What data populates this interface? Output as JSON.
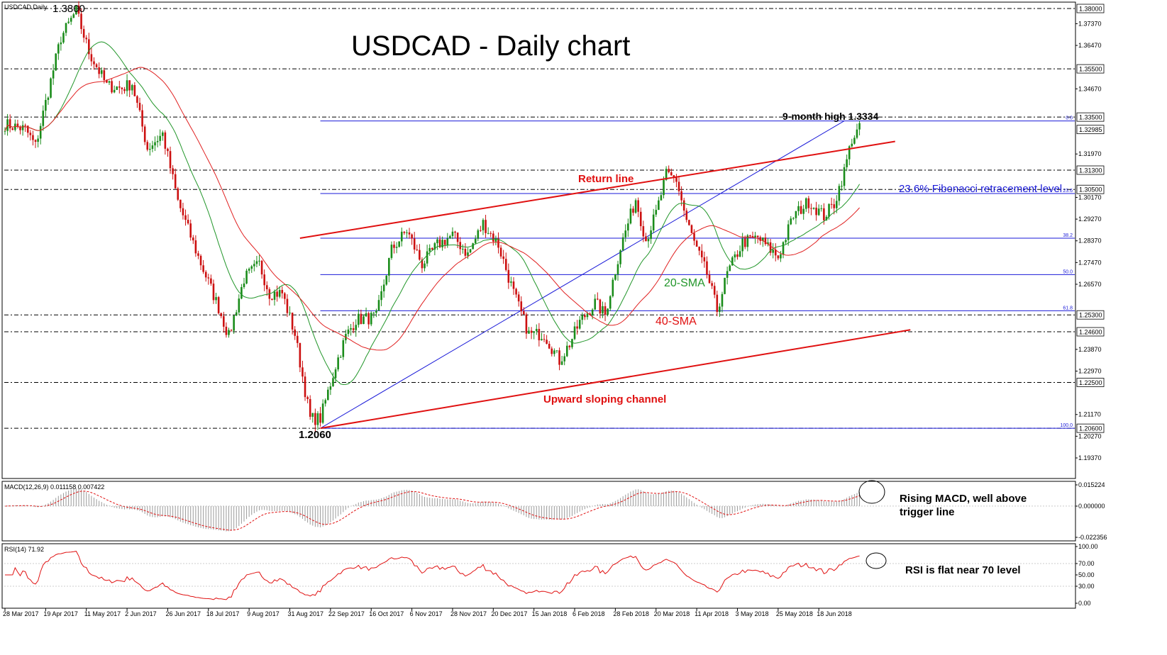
{
  "chart_data": {
    "type": "candlestick",
    "symbol_label": "USDCAD,Daily",
    "title": "USDCAD - Daily chart",
    "price_axis": {
      "range": [
        1.186,
        1.384
      ],
      "ticks": [
        {
          "value": 1.3737,
          "label": "1.37370"
        },
        {
          "value": 1.3647,
          "label": "1.36470"
        },
        {
          "value": 1.3467,
          "label": "1.34670"
        },
        {
          "value": 1.3197,
          "label": "1.31970"
        },
        {
          "value": 1.3017,
          "label": "1.30170"
        },
        {
          "value": 1.2927,
          "label": "1.29270"
        },
        {
          "value": 1.2837,
          "label": "1.28370"
        },
        {
          "value": 1.2747,
          "label": "1.27470"
        },
        {
          "value": 1.2657,
          "label": "1.26570"
        },
        {
          "value": 1.2387,
          "label": "1.23870"
        },
        {
          "value": 1.2297,
          "label": "1.22970"
        },
        {
          "value": 1.2117,
          "label": "1.21170"
        },
        {
          "value": 1.2027,
          "label": "1.20270"
        },
        {
          "value": 1.1937,
          "label": "1.19370"
        }
      ],
      "boxed_levels": [
        {
          "value": 1.38,
          "label": "1.38000"
        },
        {
          "value": 1.355,
          "label": "1.35500"
        },
        {
          "value": 1.335,
          "label": "1.33500"
        },
        {
          "value": 1.32985,
          "label": "1.32985"
        },
        {
          "value": 1.313,
          "label": "1.31300"
        },
        {
          "value": 1.305,
          "label": "1.30500"
        },
        {
          "value": 1.253,
          "label": "1.25300"
        },
        {
          "value": 1.246,
          "label": "1.24600"
        },
        {
          "value": 1.225,
          "label": "1.22500"
        },
        {
          "value": 1.206,
          "label": "1.20600"
        }
      ]
    },
    "date_labels": [
      {
        "index": 0,
        "label": "28 Mar 2017"
      },
      {
        "index": 16,
        "label": "19 Apr 2017"
      },
      {
        "index": 32,
        "label": "11 May 2017"
      },
      {
        "index": 48,
        "label": "2 Jun 2017"
      },
      {
        "index": 64,
        "label": "26 Jun 2017"
      },
      {
        "index": 80,
        "label": "18 Jul 2017"
      },
      {
        "index": 96,
        "label": "9 Aug 2017"
      },
      {
        "index": 112,
        "label": "31 Aug 2017"
      },
      {
        "index": 128,
        "label": "22 Sep 2017"
      },
      {
        "index": 144,
        "label": "16 Oct 2017"
      },
      {
        "index": 160,
        "label": "6 Nov 2017"
      },
      {
        "index": 176,
        "label": "28 Nov 2017"
      },
      {
        "index": 192,
        "label": "20 Dec 2017"
      },
      {
        "index": 208,
        "label": "15 Jan 2018"
      },
      {
        "index": 224,
        "label": "6 Feb 2018"
      },
      {
        "index": 240,
        "label": "28 Feb 2018"
      },
      {
        "index": 256,
        "label": "20 Mar 2018"
      },
      {
        "index": 272,
        "label": "11 Apr 2018"
      },
      {
        "index": 288,
        "label": "3 May 2018"
      },
      {
        "index": 304,
        "label": "25 May 2018"
      },
      {
        "index": 320,
        "label": "18 Jun 2018"
      }
    ],
    "bars_count": 337,
    "price_path": [
      [
        0,
        1.332
      ],
      [
        8,
        1.33
      ],
      [
        12,
        1.323
      ],
      [
        22,
        1.368
      ],
      [
        28,
        1.379
      ],
      [
        33,
        1.362
      ],
      [
        40,
        1.348
      ],
      [
        46,
        1.347
      ],
      [
        50,
        1.349
      ],
      [
        56,
        1.322
      ],
      [
        62,
        1.328
      ],
      [
        68,
        1.3
      ],
      [
        76,
        1.277
      ],
      [
        84,
        1.256
      ],
      [
        88,
        1.244
      ],
      [
        94,
        1.268
      ],
      [
        100,
        1.274
      ],
      [
        104,
        1.262
      ],
      [
        109,
        1.262
      ],
      [
        114,
        1.245
      ],
      [
        120,
        1.21
      ],
      [
        124,
        1.21
      ],
      [
        130,
        1.232
      ],
      [
        134,
        1.244
      ],
      [
        138,
        1.251
      ],
      [
        146,
        1.252
      ],
      [
        152,
        1.28
      ],
      [
        158,
        1.288
      ],
      [
        164,
        1.274
      ],
      [
        170,
        1.282
      ],
      [
        176,
        1.286
      ],
      [
        182,
        1.278
      ],
      [
        188,
        1.291
      ],
      [
        194,
        1.282
      ],
      [
        200,
        1.262
      ],
      [
        206,
        1.245
      ],
      [
        212,
        1.245
      ],
      [
        218,
        1.234
      ],
      [
        222,
        1.241
      ],
      [
        226,
        1.25
      ],
      [
        232,
        1.258
      ],
      [
        236,
        1.253
      ],
      [
        242,
        1.281
      ],
      [
        248,
        1.301
      ],
      [
        252,
        1.284
      ],
      [
        256,
        1.295
      ],
      [
        260,
        1.311
      ],
      [
        264,
        1.309
      ],
      [
        268,
        1.292
      ],
      [
        272,
        1.28
      ],
      [
        276,
        1.27
      ],
      [
        280,
        1.255
      ],
      [
        284,
        1.27
      ],
      [
        290,
        1.283
      ],
      [
        296,
        1.285
      ],
      [
        304,
        1.277
      ],
      [
        310,
        1.294
      ],
      [
        316,
        1.3
      ],
      [
        322,
        1.294
      ],
      [
        326,
        1.299
      ],
      [
        330,
        1.3125
      ],
      [
        333,
        1.326
      ],
      [
        336,
        1.33
      ]
    ],
    "sma20_label": "20-SMA",
    "sma40_label": "40-SMA",
    "fibonacci": {
      "swing_low": 1.206,
      "swing_high": 1.3334,
      "levels": [
        {
          "label": "0.0",
          "value": 1.3334
        },
        {
          "label": "23.6",
          "value": 1.3033
        },
        {
          "label": "38.2",
          "value": 1.2848
        },
        {
          "label": "50.0",
          "value": 1.2697
        },
        {
          "label": "61.8",
          "value": 1.2547
        },
        {
          "label": "100.0",
          "value": 1.206
        }
      ],
      "diagonal": {
        "from": {
          "index": 124,
          "value": 1.206
        },
        "to": {
          "index": 330,
          "value": 1.3334
        }
      }
    },
    "channel": {
      "lower": {
        "from": {
          "index": 124,
          "value": 1.206
        },
        "to": {
          "index": 356,
          "value": 1.2468
        }
      },
      "upper": {
        "from": {
          "index": 116,
          "value": 1.2848
        },
        "to": {
          "index": 350,
          "value": 1.3249
        }
      }
    },
    "annotations": [
      {
        "id": "peak",
        "text": "1.3800"
      },
      {
        "id": "high",
        "text": "9-month high 1.3334"
      },
      {
        "id": "return",
        "text": "Return line"
      },
      {
        "id": "fib",
        "text": "23.6% Fibonacci retracement level"
      },
      {
        "id": "channel",
        "text": "Upward sloping channel"
      },
      {
        "id": "low",
        "text": "1.2060"
      },
      {
        "id": "sma20",
        "text": "20-SMA"
      },
      {
        "id": "sma40",
        "text": "40-SMA"
      }
    ],
    "macd": {
      "label": "MACD(12,26,9) 0.011158 0.007422",
      "current_macd": 0.011158,
      "current_signal": 0.007422,
      "ticks": [
        {
          "value": 0.015224,
          "label": "0.015224"
        },
        {
          "value": 0.0,
          "label": "0.000000"
        },
        {
          "value": -0.022356,
          "label": "-0.022356"
        }
      ],
      "comment": "Rising MACD, well above trigger line"
    },
    "rsi": {
      "label": "RSI(14) 71.92",
      "current": 71.92,
      "ticks": [
        {
          "value": 100,
          "label": "100.00"
        },
        {
          "value": 70,
          "label": "70.00"
        },
        {
          "value": 50,
          "label": "50.00"
        },
        {
          "value": 30,
          "label": "30.00"
        },
        {
          "value": 0,
          "label": "0.00"
        }
      ],
      "comment": "RSI is flat near 70 level"
    },
    "colors": {
      "bull": "#1a8c1a",
      "bear": "#cc1010",
      "sma20": "#22962a",
      "sma40": "#e02020",
      "fib": "#1a1ad8",
      "channel": "#e01010",
      "annotation_red": "#e01010"
    }
  }
}
